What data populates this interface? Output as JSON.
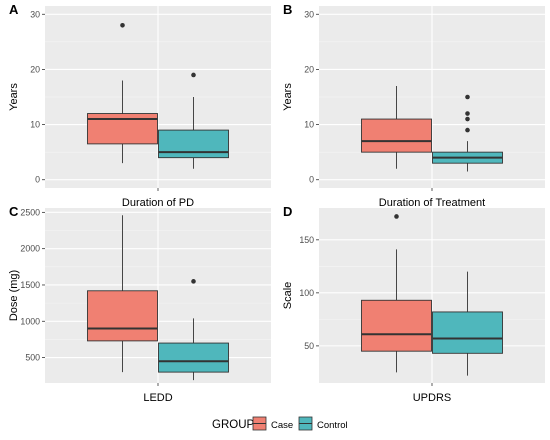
{
  "legend": {
    "title": "GROUP",
    "position": "bottom",
    "items": [
      {
        "label": "Case",
        "color": "#F08072"
      },
      {
        "label": "Control",
        "color": "#4FB7BC"
      }
    ]
  },
  "colors": {
    "panel_bg": "#EBEBEB",
    "grid_major": "#FFFFFF",
    "box_outline": "#333333",
    "axis_text": "#4D4D4D"
  },
  "chart_data": [
    {
      "panel": "A",
      "type": "boxplot",
      "xlabel": "Duration of PD",
      "ylabel": "Years",
      "ylim": [
        -1.5,
        31.5
      ],
      "yticks": [
        0,
        10,
        20,
        30
      ],
      "grid": true,
      "series": [
        {
          "name": "Case",
          "min": 3,
          "q1": 6.5,
          "median": 11,
          "q3": 12,
          "max": 18,
          "outliers": [
            28
          ]
        },
        {
          "name": "Control",
          "min": 2,
          "q1": 4,
          "median": 5,
          "q3": 9,
          "max": 15,
          "outliers": [
            19
          ]
        }
      ]
    },
    {
      "panel": "B",
      "type": "boxplot",
      "xlabel": "Duration of Treatment",
      "ylabel": "Years",
      "ylim": [
        -1.5,
        31.5
      ],
      "yticks": [
        0,
        10,
        20,
        30
      ],
      "grid": true,
      "series": [
        {
          "name": "Case",
          "min": 2,
          "q1": 5,
          "median": 7,
          "q3": 11,
          "max": 17,
          "outliers": []
        },
        {
          "name": "Control",
          "min": 1.5,
          "q1": 3,
          "median": 4,
          "q3": 5,
          "max": 7,
          "outliers": [
            9,
            11,
            12,
            15
          ]
        }
      ]
    },
    {
      "panel": "C",
      "type": "boxplot",
      "xlabel": "LEDD",
      "ylabel": "Dose (mg)",
      "ylim": [
        150,
        2560
      ],
      "yticks": [
        500,
        1000,
        1500,
        2000,
        2500
      ],
      "grid": true,
      "series": [
        {
          "name": "Case",
          "min": 300,
          "q1": 730,
          "median": 900,
          "q3": 1420,
          "max": 2460,
          "outliers": []
        },
        {
          "name": "Control",
          "min": 190,
          "q1": 300,
          "median": 450,
          "q3": 700,
          "max": 1040,
          "outliers": [
            1550
          ]
        }
      ]
    },
    {
      "panel": "D",
      "type": "boxplot",
      "xlabel": "UPDRS",
      "ylabel": "Scale",
      "ylim": [
        15,
        180
      ],
      "yticks": [
        50,
        100,
        150
      ],
      "grid": true,
      "series": [
        {
          "name": "Case",
          "min": 25,
          "q1": 45,
          "median": 61,
          "q3": 93,
          "max": 141,
          "outliers": [
            172
          ]
        },
        {
          "name": "Control",
          "min": 22,
          "q1": 43,
          "median": 57,
          "q3": 82,
          "max": 120,
          "outliers": []
        }
      ]
    }
  ]
}
